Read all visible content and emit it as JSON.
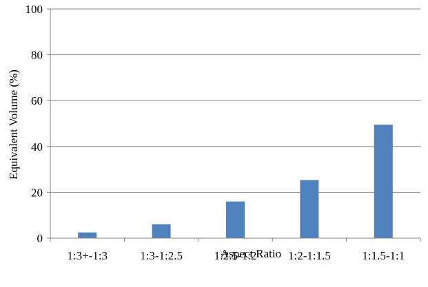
{
  "chart_data": {
    "type": "bar",
    "categories": [
      "1:3+-1:3",
      "1:3-1:2.5",
      "1:2.5-1:2",
      "1:2-1:1.5",
      "1:1.5-1:1"
    ],
    "series": [
      {
        "values": [
          2.5,
          6,
          16,
          25.3,
          49.5
        ]
      }
    ],
    "xlabel": "Aspect Ratio",
    "ylabel": "Equivalent Volume (%)",
    "ylim": [
      0,
      100
    ],
    "yticks": [
      0,
      20,
      40,
      60,
      80,
      100
    ],
    "ytick_labels": [
      "0",
      "20",
      "40",
      "60",
      "80",
      "100"
    ],
    "grid": "horizontal major gridlines",
    "legend": "none",
    "bar_color": "#4f81bd",
    "gridline_color": "#868686"
  }
}
